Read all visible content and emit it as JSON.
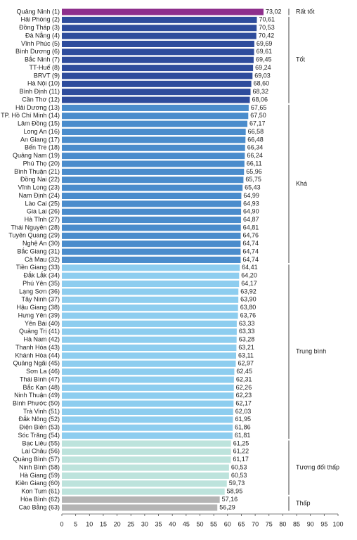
{
  "chart_data": {
    "type": "bar",
    "orientation": "horizontal",
    "xlim": [
      0,
      100
    ],
    "xticks": [
      0,
      5,
      10,
      15,
      20,
      25,
      30,
      35,
      40,
      45,
      50,
      55,
      60,
      65,
      70,
      75,
      80,
      85,
      90,
      95,
      100
    ],
    "series": [
      {
        "name": "Rất tốt",
        "color": "#8e2f8c",
        "categories": [
          "Quảng Ninh (1)"
        ],
        "values": [
          73.02
        ],
        "value_labels": [
          "73,02"
        ]
      },
      {
        "name": "Tốt",
        "color": "#2e4c9c",
        "categories": [
          "Hải Phòng (2)",
          "Đồng Tháp (3)",
          "Đà Nẵng (4)",
          "Vĩnh Phúc (5)",
          "Bình Dương (6)",
          "Bắc Ninh (7)",
          "TT-Huế (8)",
          "BRVT (9)",
          "Hà Nội (10)",
          "Bình Định (11)",
          "Cần Thơ (12)"
        ],
        "values": [
          70.61,
          70.53,
          70.42,
          69.69,
          69.61,
          69.45,
          69.24,
          69.03,
          68.6,
          68.32,
          68.06
        ],
        "value_labels": [
          "70,61",
          "70,53",
          "70,42",
          "69,69",
          "69,61",
          "69,45",
          "69,24",
          "69,03",
          "68,60",
          "68,32",
          "68,06"
        ]
      },
      {
        "name": "Khá",
        "color": "#4a8ccc",
        "categories": [
          "Hải Dương (13)",
          "TP. Hồ Chí Minh (14)",
          "Lâm Đồng (15)",
          "Long An (16)",
          "An Giang (17)",
          "Bến Tre (18)",
          "Quảng Nam (19)",
          "Phú Thọ (20)",
          "Bình Thuận (21)",
          "Đồng Nai (22)",
          "Vĩnh Long (23)",
          "Nam Định (24)",
          "Lào Cai (25)",
          "Gia Lai (26)",
          "Hà Tĩnh (27)",
          "Thái Nguyên (28)",
          "Tuyên Quang (29)",
          "Nghệ An (30)",
          "Bắc Giang (31)",
          "Cà Mau (32)"
        ],
        "values": [
          67.65,
          67.5,
          67.17,
          66.58,
          66.48,
          66.34,
          66.24,
          66.11,
          65.96,
          65.75,
          65.43,
          64.99,
          64.93,
          64.9,
          64.87,
          64.81,
          64.76,
          64.74,
          64.74,
          64.74
        ],
        "value_labels": [
          "67,65",
          "67,50",
          "67,17",
          "66,58",
          "66,48",
          "66,34",
          "66,24",
          "66,11",
          "65,96",
          "65,75",
          "65,43",
          "64,99",
          "64,93",
          "64,90",
          "64,87",
          "64,81",
          "64,76",
          "64,74",
          "64,74",
          "64,74"
        ]
      },
      {
        "name": "Trung bình",
        "color": "#8dcdef",
        "categories": [
          "Tiền Giang (33)",
          "Đắk Lắk (34)",
          "Phú Yên (35)",
          "Lạng Sơn (36)",
          "Tây Ninh (37)",
          "Hậu Giang (38)",
          "Hưng Yên (39)",
          "Yên Bái (40)",
          "Quảng Trị (41)",
          "Hà Nam (42)",
          "Thanh Hóa (43)",
          "Khánh Hòa (44)",
          "Quảng Ngãi (45)",
          "Sơn La (46)",
          "Thái Bình (47)",
          "Bắc Kạn (48)",
          "Ninh Thuận (49)",
          "Bình Phước (50)",
          "Trà Vinh (51)",
          "Đắk Nông (52)",
          "Điện Biên (53)",
          "Sóc Trăng (54)"
        ],
        "values": [
          64.41,
          64.2,
          64.17,
          63.92,
          63.9,
          63.8,
          63.76,
          63.33,
          63.33,
          63.28,
          63.21,
          63.11,
          62.97,
          62.45,
          62.31,
          62.26,
          62.23,
          62.17,
          62.03,
          61.95,
          61.86,
          61.81
        ],
        "value_labels": [
          "64,41",
          "64,20",
          "64,17",
          "63,92",
          "63,90",
          "63,80",
          "63,76",
          "63,33",
          "63,33",
          "63,28",
          "63,21",
          "63,11",
          "62,97",
          "62,45",
          "62,31",
          "62,26",
          "62,23",
          "62,17",
          "62,03",
          "61,95",
          "61,86",
          "61,81"
        ]
      },
      {
        "name": "Tương đối thấp",
        "color": "#bde3dc",
        "categories": [
          "Bạc Liêu (55)",
          "Lai Châu (56)",
          "Quảng Bình (57)",
          "Ninh Bình (58)",
          "Hà Giang (59)",
          "Kiên Giang (60)",
          "Kon Tum (61)"
        ],
        "values": [
          61.25,
          61.22,
          61.17,
          60.53,
          60.53,
          59.73,
          58.95
        ],
        "value_labels": [
          "61,25",
          "61,22",
          "61,17",
          "60,53",
          "60,53",
          "59,73",
          "58,95"
        ]
      },
      {
        "name": "Thấp",
        "color": "#b4b4b4",
        "categories": [
          "Hòa Bình (62)",
          "Cao Bằng (63)"
        ],
        "values": [
          57.16,
          56.29
        ],
        "value_labels": [
          "57,16",
          "56,29"
        ]
      }
    ]
  }
}
